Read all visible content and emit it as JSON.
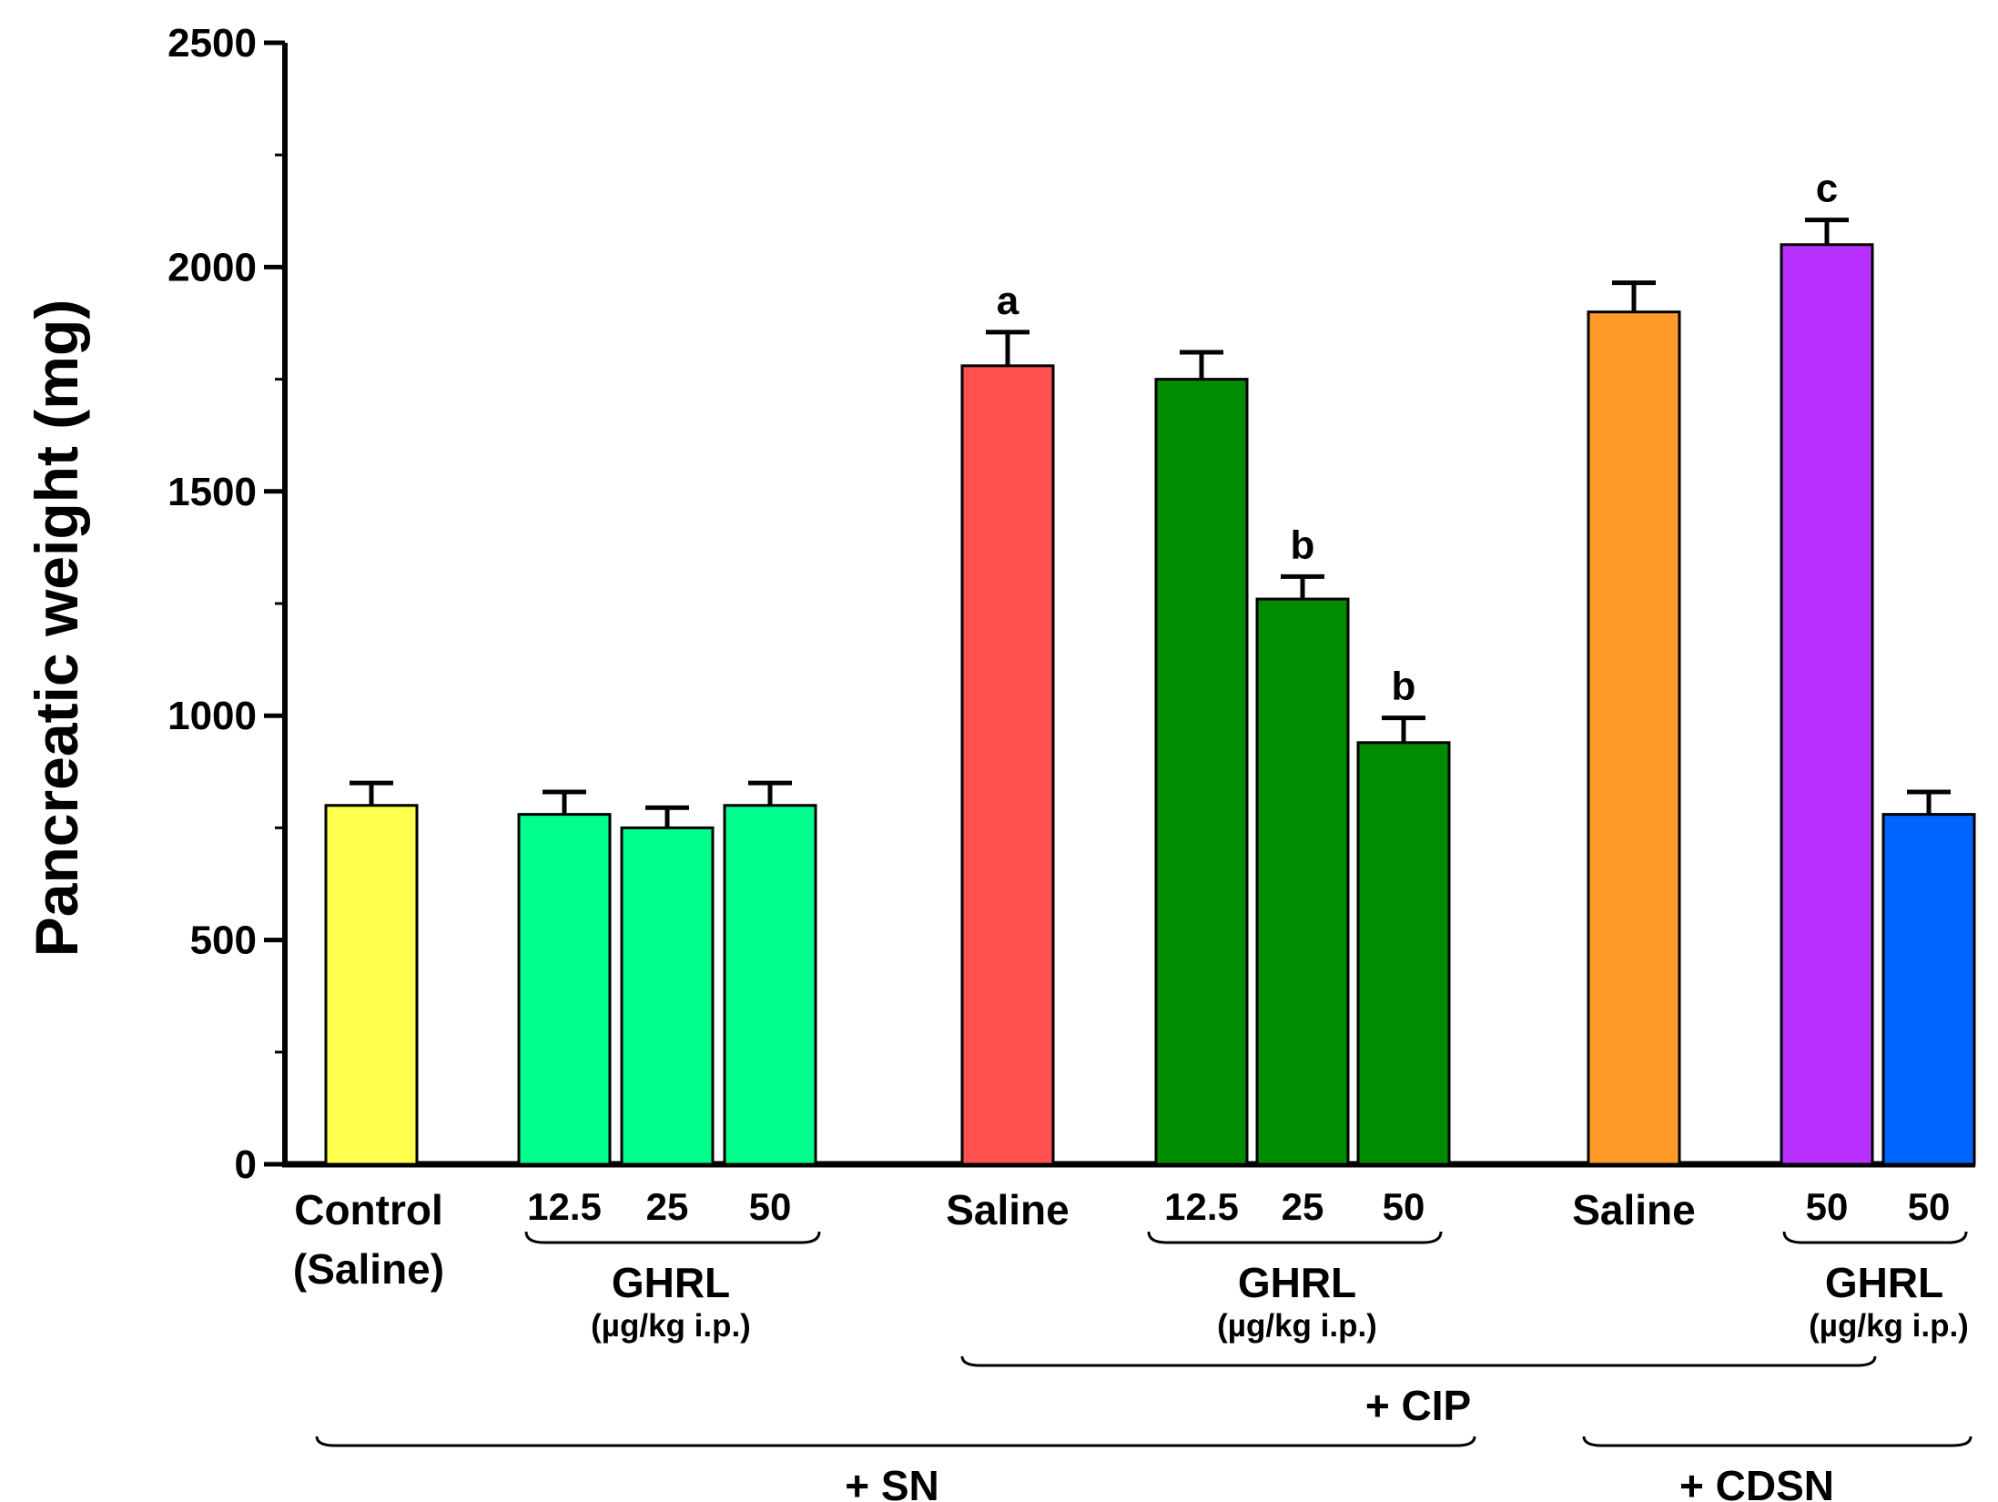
{
  "chart_data": {
    "type": "bar",
    "ylabel": "Pancreatic weight (mg)",
    "ylim": [
      0,
      2500
    ],
    "yticks": [
      "0",
      "500",
      "1000",
      "1500",
      "2000",
      "2500"
    ],
    "bar_values": [
      800,
      780,
      750,
      800,
      1780,
      1750,
      1260,
      940,
      1900,
      2050,
      780
    ],
    "bar_errors": [
      50,
      50,
      45,
      50,
      75,
      60,
      50,
      55,
      65,
      55,
      50
    ],
    "bar_colors": [
      "#ffff4d",
      "#00ff8c",
      "#00ff8c",
      "#00ff8c",
      "#ff5050",
      "#008c00",
      "#008c00",
      "#008c00",
      "#ff9a28",
      "#b830ff",
      "#0064ff"
    ],
    "bar_labels": [
      "Control",
      "12.5",
      "25",
      "50",
      "Saline",
      "12.5",
      "25",
      "50",
      "Saline",
      "50",
      "50"
    ],
    "control_sublabel": "(Saline)",
    "significance": [
      {
        "bar": 4,
        "text": "a"
      },
      {
        "bar": 6,
        "text": "b"
      },
      {
        "bar": 7,
        "text": "b"
      },
      {
        "bar": 9,
        "text": "c"
      }
    ],
    "ghrl_groups": [
      {
        "label": "GHRL",
        "unit": "(µg/kg i.p.)"
      },
      {
        "label": "GHRL",
        "unit": "(µg/kg i.p.)"
      },
      {
        "label": "GHRL",
        "unit": "(µg/kg i.p.)"
      }
    ],
    "treatment_groups": {
      "cip": "+ CIP",
      "sn": "+ SN",
      "cdsn": "+ CDSN"
    }
  }
}
